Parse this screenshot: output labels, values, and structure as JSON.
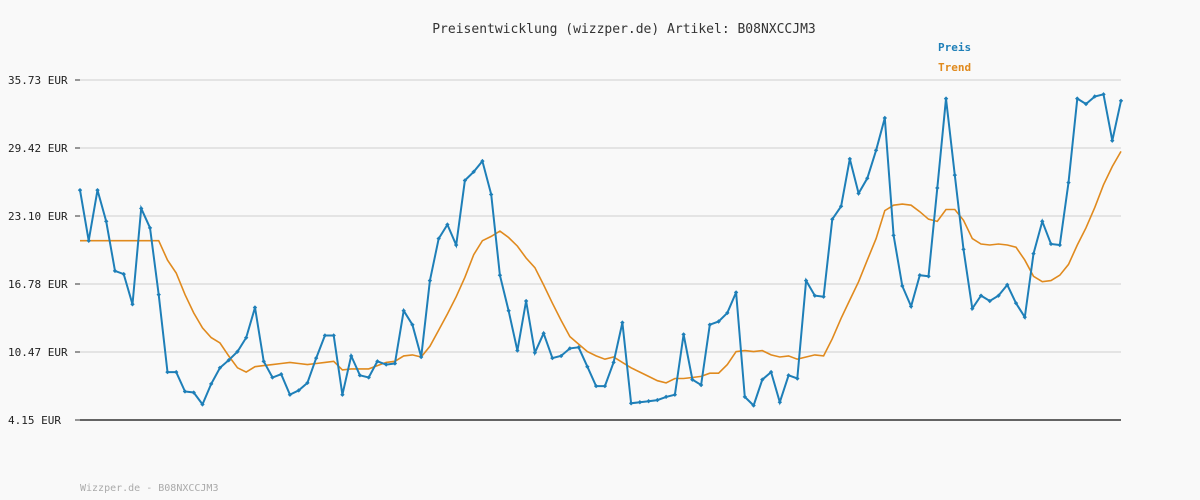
{
  "chart_data": {
    "type": "line",
    "title": "Preisentwicklung (wizzper.de) Artikel: B08NXCCJM3",
    "footer": "Wizzper.de - B08NXCCJM3",
    "y_ticks": [
      "35.73 EUR",
      "29.42 EUR",
      "23.10 EUR",
      "16.78 EUR",
      "10.47 EUR",
      "4.15 EUR"
    ],
    "ylim": [
      4.15,
      35.73
    ],
    "grid": true,
    "legend_position": "top-right",
    "colors": {
      "preis": "#1e7fb8",
      "trend": "#e08a1e",
      "grid": "#dddddd",
      "axis": "#333333"
    },
    "series": [
      {
        "name": "Preis",
        "values": [
          25.5,
          20.8,
          25.5,
          22.6,
          18.0,
          17.7,
          14.9,
          23.8,
          22.0,
          15.8,
          8.6,
          8.6,
          6.8,
          6.7,
          5.6,
          7.5,
          9.0,
          9.7,
          10.5,
          11.8,
          14.6,
          9.6,
          8.1,
          8.4,
          6.5,
          6.9,
          7.6,
          9.9,
          12.0,
          12.0,
          6.5,
          10.1,
          8.3,
          8.1,
          9.6,
          9.3,
          9.4,
          14.3,
          13.0,
          10.0,
          17.1,
          21.0,
          22.3,
          20.4,
          26.4,
          27.2,
          28.2,
          25.1,
          17.6,
          14.3,
          10.6,
          15.2,
          10.4,
          12.2,
          9.9,
          10.1,
          10.8,
          10.9,
          9.1,
          7.3,
          7.3,
          9.5,
          13.2,
          5.7,
          5.8,
          5.9,
          6.0,
          6.3,
          6.5,
          12.1,
          7.9,
          7.4,
          13.0,
          13.3,
          14.1,
          16.0,
          6.3,
          5.5,
          7.9,
          8.6,
          5.8,
          8.3,
          8.0,
          17.1,
          15.7,
          15.6,
          22.8,
          24.0,
          28.4,
          25.2,
          26.6,
          29.2,
          32.2,
          21.3,
          16.6,
          14.7,
          17.6,
          17.5,
          25.7,
          34.0,
          26.9,
          20.0,
          14.5,
          15.7,
          15.2,
          15.7,
          16.7,
          15.0,
          13.7,
          19.6,
          22.6,
          20.5,
          20.4,
          26.2,
          34.0,
          33.5,
          34.2,
          34.4,
          30.1,
          33.8
        ]
      },
      {
        "name": "Trend",
        "values": [
          20.8,
          20.8,
          20.8,
          20.8,
          20.8,
          20.8,
          20.8,
          20.8,
          20.8,
          20.8,
          19.0,
          17.8,
          15.8,
          14.1,
          12.7,
          11.8,
          11.3,
          10.1,
          9.0,
          8.6,
          9.1,
          9.2,
          9.3,
          9.4,
          9.5,
          9.4,
          9.3,
          9.4,
          9.5,
          9.6,
          8.8,
          8.9,
          8.9,
          8.9,
          9.2,
          9.5,
          9.6,
          10.1,
          10.2,
          10.0,
          11.0,
          12.5,
          14.0,
          15.6,
          17.4,
          19.5,
          20.8,
          21.2,
          21.7,
          21.1,
          20.3,
          19.2,
          18.3,
          16.7,
          15.0,
          13.4,
          11.9,
          11.2,
          10.5,
          10.1,
          9.8,
          10.0,
          9.5,
          9.0,
          8.6,
          8.2,
          7.8,
          7.6,
          8.0,
          8.0,
          8.1,
          8.2,
          8.5,
          8.5,
          9.3,
          10.5,
          10.6,
          10.5,
          10.6,
          10.2,
          10.0,
          10.1,
          9.8,
          10.0,
          10.2,
          10.1,
          11.7,
          13.6,
          15.3,
          17.0,
          19.0,
          21.0,
          23.6,
          24.1,
          24.2,
          24.1,
          23.5,
          22.8,
          22.6,
          23.7,
          23.7,
          22.7,
          21.0,
          20.5,
          20.4,
          20.5,
          20.4,
          20.2,
          19.0,
          17.5,
          17.0,
          17.1,
          17.6,
          18.6,
          20.4,
          22.0,
          23.9,
          26.0,
          27.7,
          29.1
        ]
      }
    ]
  }
}
